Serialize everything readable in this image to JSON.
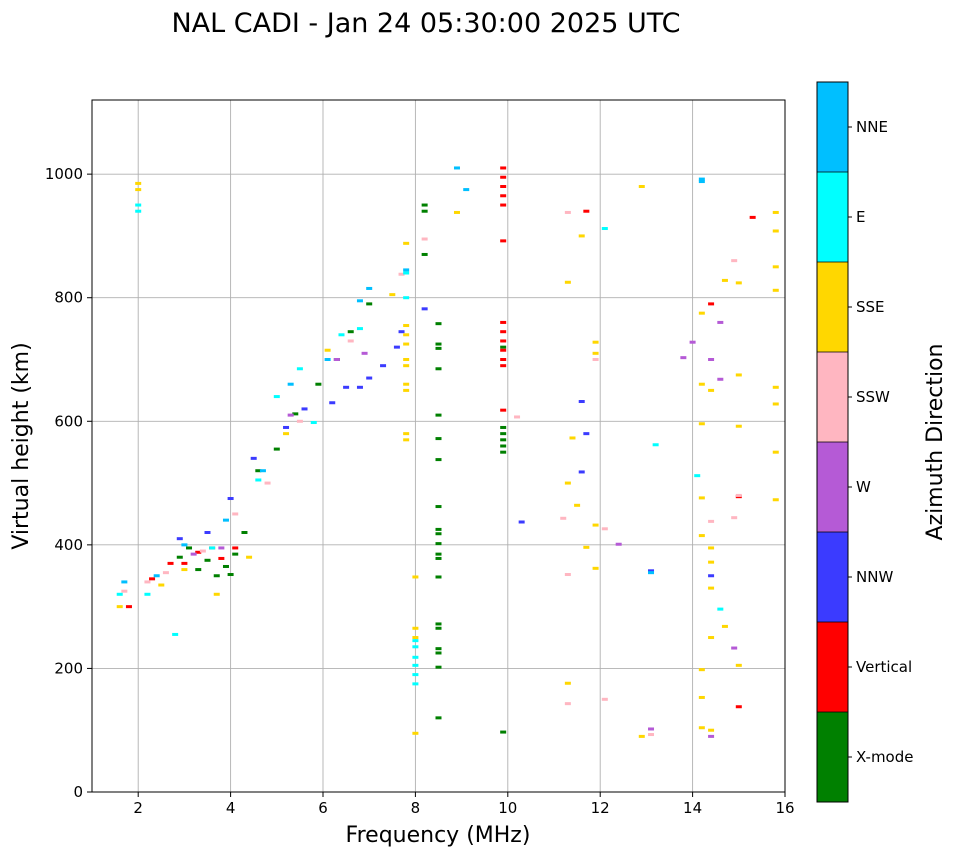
{
  "chart_data": {
    "type": "scatter",
    "title": "NAL CADI - Jan 24 05:30:00 2025 UTC",
    "xlabel": "Frequency (MHz)",
    "ylabel": "Virtual height (km)",
    "xlim": [
      1,
      16
    ],
    "ylim": [
      0,
      1120
    ],
    "xticks": [
      2,
      4,
      6,
      8,
      10,
      12,
      14,
      16
    ],
    "yticks": [
      0,
      200,
      400,
      600,
      800,
      1000
    ],
    "grid": true,
    "colorbar": {
      "label": "Azimuth Direction",
      "categories": [
        {
          "name": "X-mode",
          "color": "#008000"
        },
        {
          "name": "Vertical",
          "color": "#ff0000"
        },
        {
          "name": "NNW",
          "color": "#3b3bff"
        },
        {
          "name": "W",
          "color": "#b55ad6"
        },
        {
          "name": "SSW",
          "color": "#ffb6c1"
        },
        {
          "name": "SSE",
          "color": "#ffd700"
        },
        {
          "name": "E",
          "color": "#00ffff"
        },
        {
          "name": "NNE",
          "color": "#00bfff"
        }
      ]
    },
    "series": [
      {
        "name": "X-mode",
        "points": [
          [
            2.9,
            380
          ],
          [
            3.1,
            395
          ],
          [
            3.3,
            360
          ],
          [
            3.5,
            375
          ],
          [
            3.7,
            350
          ],
          [
            3.9,
            365
          ],
          [
            4.0,
            352
          ],
          [
            4.1,
            385
          ],
          [
            4.3,
            420
          ],
          [
            4.6,
            520
          ],
          [
            5.0,
            555
          ],
          [
            5.4,
            612
          ],
          [
            5.9,
            660
          ],
          [
            6.3,
            700
          ],
          [
            6.6,
            745
          ],
          [
            7.0,
            790
          ],
          [
            8.2,
            950
          ],
          [
            8.2,
            940
          ],
          [
            8.2,
            870
          ],
          [
            8.5,
            758
          ],
          [
            8.5,
            725
          ],
          [
            8.5,
            718
          ],
          [
            8.5,
            685
          ],
          [
            8.5,
            610
          ],
          [
            8.5,
            572
          ],
          [
            8.5,
            538
          ],
          [
            8.5,
            462
          ],
          [
            8.5,
            425
          ],
          [
            8.5,
            418
          ],
          [
            8.5,
            402
          ],
          [
            8.5,
            385
          ],
          [
            8.5,
            378
          ],
          [
            8.5,
            348
          ],
          [
            8.5,
            272
          ],
          [
            8.5,
            265
          ],
          [
            8.5,
            232
          ],
          [
            8.5,
            225
          ],
          [
            8.5,
            202
          ],
          [
            8.5,
            120
          ],
          [
            9.9,
            720
          ],
          [
            9.9,
            590
          ],
          [
            9.9,
            580
          ],
          [
            9.9,
            570
          ],
          [
            9.9,
            560
          ],
          [
            9.9,
            550
          ],
          [
            9.9,
            97
          ]
        ]
      },
      {
        "name": "Vertical",
        "points": [
          [
            1.8,
            300
          ],
          [
            2.3,
            345
          ],
          [
            2.7,
            370
          ],
          [
            3.0,
            370
          ],
          [
            3.3,
            388
          ],
          [
            3.6,
            395
          ],
          [
            3.8,
            378
          ],
          [
            4.1,
            395
          ],
          [
            9.9,
            1010
          ],
          [
            9.9,
            995
          ],
          [
            9.9,
            980
          ],
          [
            9.9,
            965
          ],
          [
            9.9,
            950
          ],
          [
            9.9,
            892
          ],
          [
            9.9,
            760
          ],
          [
            9.9,
            745
          ],
          [
            9.9,
            730
          ],
          [
            9.9,
            715
          ],
          [
            9.9,
            700
          ],
          [
            9.9,
            690
          ],
          [
            9.9,
            618
          ],
          [
            11.7,
            940
          ],
          [
            14.4,
            790
          ],
          [
            15.0,
            478
          ],
          [
            15.0,
            138
          ],
          [
            15.3,
            930
          ]
        ]
      },
      {
        "name": "NNW",
        "points": [
          [
            2.9,
            410
          ],
          [
            3.5,
            420
          ],
          [
            4.0,
            475
          ],
          [
            4.5,
            540
          ],
          [
            5.2,
            590
          ],
          [
            5.6,
            620
          ],
          [
            6.2,
            630
          ],
          [
            6.5,
            655
          ],
          [
            6.8,
            655
          ],
          [
            7.0,
            670
          ],
          [
            7.3,
            690
          ],
          [
            7.6,
            720
          ],
          [
            7.7,
            745
          ],
          [
            8.2,
            782
          ],
          [
            10.3,
            437
          ],
          [
            11.6,
            518
          ],
          [
            11.6,
            632
          ],
          [
            11.7,
            580
          ],
          [
            13.1,
            358
          ],
          [
            14.4,
            350
          ]
        ]
      },
      {
        "name": "W",
        "points": [
          [
            3.2,
            385
          ],
          [
            3.8,
            395
          ],
          [
            5.3,
            610
          ],
          [
            6.3,
            700
          ],
          [
            6.9,
            710
          ],
          [
            12.4,
            401
          ],
          [
            13.8,
            703
          ],
          [
            14.0,
            728
          ],
          [
            14.4,
            700
          ],
          [
            14.6,
            760
          ],
          [
            14.6,
            668
          ],
          [
            14.9,
            233
          ],
          [
            14.4,
            90
          ],
          [
            13.1,
            102
          ]
        ]
      },
      {
        "name": "SSW",
        "points": [
          [
            1.7,
            325
          ],
          [
            2.2,
            340
          ],
          [
            2.6,
            355
          ],
          [
            3.4,
            390
          ],
          [
            4.1,
            450
          ],
          [
            4.8,
            500
          ],
          [
            5.5,
            600
          ],
          [
            6.6,
            730
          ],
          [
            7.7,
            838
          ],
          [
            8.2,
            895
          ],
          [
            10.2,
            607
          ],
          [
            11.2,
            443
          ],
          [
            11.3,
            938
          ],
          [
            11.3,
            352
          ],
          [
            11.3,
            143
          ],
          [
            11.9,
            700
          ],
          [
            12.1,
            426
          ],
          [
            12.1,
            150
          ],
          [
            13.1,
            93
          ],
          [
            14.4,
            438
          ],
          [
            14.9,
            860
          ],
          [
            14.9,
            444
          ],
          [
            15.0,
            480
          ]
        ]
      },
      {
        "name": "SSE",
        "points": [
          [
            1.6,
            300
          ],
          [
            2.0,
            985
          ],
          [
            2.0,
            975
          ],
          [
            2.5,
            335
          ],
          [
            3.0,
            360
          ],
          [
            3.7,
            320
          ],
          [
            4.4,
            380
          ],
          [
            5.2,
            580
          ],
          [
            6.1,
            715
          ],
          [
            7.5,
            805
          ],
          [
            7.8,
            888
          ],
          [
            7.8,
            755
          ],
          [
            7.8,
            740
          ],
          [
            7.8,
            725
          ],
          [
            7.8,
            700
          ],
          [
            7.8,
            690
          ],
          [
            7.8,
            660
          ],
          [
            7.8,
            650
          ],
          [
            7.8,
            580
          ],
          [
            7.8,
            570
          ],
          [
            8.0,
            348
          ],
          [
            8.0,
            265
          ],
          [
            8.0,
            250
          ],
          [
            8.0,
            95
          ],
          [
            8.9,
            938
          ],
          [
            11.3,
            825
          ],
          [
            11.3,
            500
          ],
          [
            11.4,
            573
          ],
          [
            11.5,
            464
          ],
          [
            11.6,
            900
          ],
          [
            11.7,
            396
          ],
          [
            11.9,
            728
          ],
          [
            11.9,
            710
          ],
          [
            11.9,
            432
          ],
          [
            11.9,
            362
          ],
          [
            11.3,
            176
          ],
          [
            12.9,
            980
          ],
          [
            12.9,
            90
          ],
          [
            14.2,
            775
          ],
          [
            14.2,
            660
          ],
          [
            14.2,
            596
          ],
          [
            14.2,
            476
          ],
          [
            14.2,
            415
          ],
          [
            14.2,
            198
          ],
          [
            14.2,
            153
          ],
          [
            14.2,
            104
          ],
          [
            14.4,
            650
          ],
          [
            14.4,
            395
          ],
          [
            14.4,
            372
          ],
          [
            14.4,
            330
          ],
          [
            14.4,
            250
          ],
          [
            14.4,
            100
          ],
          [
            14.7,
            828
          ],
          [
            14.7,
            268
          ],
          [
            15.0,
            824
          ],
          [
            15.0,
            675
          ],
          [
            15.0,
            592
          ],
          [
            15.0,
            205
          ],
          [
            15.8,
            938
          ],
          [
            15.8,
            908
          ],
          [
            15.8,
            850
          ],
          [
            15.8,
            812
          ],
          [
            15.8,
            655
          ],
          [
            15.8,
            628
          ],
          [
            15.8,
            550
          ],
          [
            15.8,
            473
          ]
        ]
      },
      {
        "name": "E",
        "points": [
          [
            1.6,
            320
          ],
          [
            2.0,
            950
          ],
          [
            2.0,
            940
          ],
          [
            2.2,
            320
          ],
          [
            2.8,
            255
          ],
          [
            3.6,
            395
          ],
          [
            4.6,
            505
          ],
          [
            5.0,
            640
          ],
          [
            5.5,
            685
          ],
          [
            5.8,
            598
          ],
          [
            6.4,
            740
          ],
          [
            6.8,
            750
          ],
          [
            7.8,
            840
          ],
          [
            7.8,
            800
          ],
          [
            8.0,
            218
          ],
          [
            8.0,
            205
          ],
          [
            8.0,
            190
          ],
          [
            8.0,
            175
          ],
          [
            8.0,
            245
          ],
          [
            8.0,
            235
          ],
          [
            12.1,
            912
          ],
          [
            13.2,
            562
          ],
          [
            14.1,
            512
          ],
          [
            14.6,
            296
          ]
        ]
      },
      {
        "name": "NNE",
        "points": [
          [
            1.7,
            340
          ],
          [
            2.4,
            350
          ],
          [
            3.0,
            400
          ],
          [
            3.9,
            440
          ],
          [
            4.7,
            520
          ],
          [
            5.3,
            660
          ],
          [
            6.1,
            700
          ],
          [
            6.8,
            795
          ],
          [
            7.0,
            815
          ],
          [
            7.8,
            845
          ],
          [
            8.9,
            1010
          ],
          [
            9.1,
            975
          ],
          [
            13.1,
            355
          ],
          [
            14.2,
            992
          ],
          [
            14.2,
            988
          ]
        ]
      }
    ]
  }
}
